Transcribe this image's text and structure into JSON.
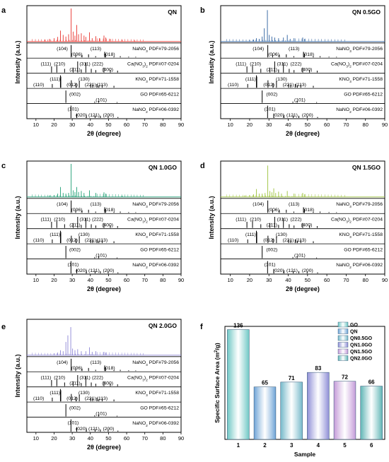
{
  "figure": {
    "panels": [
      {
        "letter": "a",
        "sample_label": "QN",
        "color": "#e8322c",
        "xlabel": "2θ (degree)",
        "ylabel": "Intensity (a.u.)",
        "xlim": [
          5,
          90
        ],
        "xticks": [
          10,
          20,
          30,
          40,
          50,
          60,
          70,
          80,
          90
        ],
        "sample_peaks": [
          [
            15,
            0.06
          ],
          [
            17.5,
            0.08
          ],
          [
            20,
            0.1
          ],
          [
            22,
            0.14
          ],
          [
            23.5,
            0.33
          ],
          [
            25,
            0.2
          ],
          [
            26.5,
            0.15
          ],
          [
            28,
            0.22
          ],
          [
            29.4,
            1.0
          ],
          [
            30.5,
            0.3
          ],
          [
            31.5,
            0.18
          ],
          [
            32.5,
            0.5
          ],
          [
            33.5,
            0.22
          ],
          [
            35,
            0.25
          ],
          [
            36.5,
            0.18
          ],
          [
            37.5,
            0.14
          ],
          [
            39.5,
            0.28
          ],
          [
            41,
            0.1
          ],
          [
            43,
            0.16
          ],
          [
            45,
            0.1
          ],
          [
            47.5,
            0.18
          ],
          [
            48.5,
            0.12
          ],
          [
            51,
            0.08
          ],
          [
            57.5,
            0.05
          ],
          [
            64.5,
            0.03
          ]
        ]
      },
      {
        "letter": "b",
        "sample_label": "QN 0.5GO",
        "color": "#2b5f9e",
        "xlabel": "2θ (degree)",
        "ylabel": "Intensity (a.u.)",
        "xlim": [
          5,
          90
        ],
        "xticks": [
          10,
          20,
          30,
          40,
          50,
          60,
          70,
          80,
          90
        ],
        "sample_peaks": [
          [
            20,
            0.05
          ],
          [
            22,
            0.06
          ],
          [
            23.5,
            0.1
          ],
          [
            25,
            0.08
          ],
          [
            26.5,
            0.15
          ],
          [
            27.6,
            0.4
          ],
          [
            29.2,
            0.95
          ],
          [
            30.2,
            0.2
          ],
          [
            31.5,
            0.15
          ],
          [
            33,
            0.12
          ],
          [
            35,
            0.1
          ],
          [
            37.5,
            0.12
          ],
          [
            39.5,
            0.2
          ],
          [
            41,
            0.08
          ],
          [
            43,
            0.1
          ],
          [
            47.5,
            0.12
          ],
          [
            48.5,
            0.08
          ]
        ]
      },
      {
        "letter": "c",
        "sample_label": "QN 1.0GO",
        "color": "#1e9e73",
        "xlabel": "2θ (degree)",
        "ylabel": "Intensity (a.u.)",
        "xlim": [
          5,
          90
        ],
        "xticks": [
          10,
          20,
          30,
          40,
          50,
          60,
          70,
          80,
          90
        ],
        "sample_peaks": [
          [
            17.5,
            0.05
          ],
          [
            20,
            0.06
          ],
          [
            22,
            0.1
          ],
          [
            23.5,
            0.3
          ],
          [
            25,
            0.12
          ],
          [
            26.5,
            0.1
          ],
          [
            28,
            0.12
          ],
          [
            29.4,
            1.0
          ],
          [
            30.5,
            0.2
          ],
          [
            31.5,
            0.15
          ],
          [
            32.5,
            0.3
          ],
          [
            33.5,
            0.15
          ],
          [
            35,
            0.18
          ],
          [
            36.5,
            0.12
          ],
          [
            39.5,
            0.2
          ],
          [
            43,
            0.12
          ],
          [
            47.5,
            0.14
          ],
          [
            48.5,
            0.1
          ],
          [
            57.5,
            0.04
          ]
        ]
      },
      {
        "letter": "d",
        "sample_label": "QN 1.5GO",
        "color": "#9cc23a",
        "xlabel": "2θ (degree)",
        "ylabel": "Intensity (a.u.)",
        "xlim": [
          5,
          90
        ],
        "xticks": [
          10,
          20,
          30,
          40,
          50,
          60,
          70,
          80,
          90
        ],
        "sample_peaks": [
          [
            17.5,
            0.05
          ],
          [
            20,
            0.06
          ],
          [
            22,
            0.08
          ],
          [
            23.5,
            0.24
          ],
          [
            25,
            0.1
          ],
          [
            26.5,
            0.1
          ],
          [
            28,
            0.12
          ],
          [
            29.4,
            0.95
          ],
          [
            30.5,
            0.18
          ],
          [
            31.5,
            0.14
          ],
          [
            32.5,
            0.26
          ],
          [
            33.5,
            0.12
          ],
          [
            35,
            0.16
          ],
          [
            36.5,
            0.1
          ],
          [
            39.5,
            0.18
          ],
          [
            43,
            0.1
          ],
          [
            47.5,
            0.12
          ],
          [
            48.5,
            0.08
          ]
        ]
      },
      {
        "letter": "e",
        "sample_label": "QN 2.0GO",
        "color": "#8d86d6",
        "xlabel": "2θ (degree)",
        "ylabel": "Intensity (a.u.)",
        "xlim": [
          5,
          90
        ],
        "xticks": [
          10,
          20,
          30,
          40,
          50,
          60,
          70,
          80,
          90
        ],
        "sample_peaks": [
          [
            20,
            0.06
          ],
          [
            22,
            0.08
          ],
          [
            23.5,
            0.15
          ],
          [
            25,
            0.12
          ],
          [
            26.5,
            0.4
          ],
          [
            27.6,
            0.6
          ],
          [
            29.2,
            0.85
          ],
          [
            30.2,
            0.2
          ],
          [
            31.5,
            0.15
          ],
          [
            33,
            0.18
          ],
          [
            35,
            0.12
          ],
          [
            37.5,
            0.12
          ],
          [
            39.5,
            0.24
          ],
          [
            41,
            0.1
          ],
          [
            43,
            0.12
          ],
          [
            47.5,
            0.1
          ],
          [
            48.5,
            0.08
          ]
        ]
      }
    ],
    "references": [
      {
        "name": "NaNO3 PDF#79-2056",
        "label_parts": [
          {
            "t": "NaNO"
          },
          {
            "t": "3",
            "sub": true
          },
          {
            "t": " PDF#79-2056"
          }
        ],
        "peaks": [
          [
            29.4,
            1.0
          ],
          [
            31.9,
            0.18
          ],
          [
            35.4,
            0.2
          ],
          [
            39,
            0.25
          ],
          [
            42.9,
            0.1
          ],
          [
            47.9,
            0.45
          ],
          [
            48.4,
            0.3
          ],
          [
            53,
            0.08
          ],
          [
            56.5,
            0.1
          ],
          [
            61.1,
            0.06
          ],
          [
            65,
            0.05
          ]
        ],
        "hkl": [
          {
            "x": 24.5,
            "t": "(104)"
          },
          {
            "x": 32.5,
            "t": "(006)",
            "low": true
          },
          {
            "x": 43,
            "t": "(113)"
          },
          {
            "x": 50.5,
            "t": "(018)",
            "low": true
          }
        ]
      },
      {
        "name": "Ca(NO3)2 PDF#07-0204",
        "label_parts": [
          {
            "t": "Ca(NO"
          },
          {
            "t": "3",
            "sub": true
          },
          {
            "t": ")"
          },
          {
            "t": "2",
            "sub": true
          },
          {
            "t": " PDF#07-0204"
          }
        ],
        "peaks": [
          [
            18.6,
            0.5
          ],
          [
            21.5,
            0.55
          ],
          [
            25.8,
            0.3
          ],
          [
            30.5,
            0.4
          ],
          [
            33,
            0.9
          ],
          [
            35,
            0.25
          ],
          [
            37.5,
            0.8
          ],
          [
            40.5,
            0.3
          ],
          [
            43,
            0.2
          ],
          [
            47.5,
            0.4
          ],
          [
            51,
            0.2
          ],
          [
            55,
            0.15
          ]
        ],
        "hkl": [
          {
            "x": 15.5,
            "t": "(111)"
          },
          {
            "x": 23,
            "t": "(210)"
          },
          {
            "x": 31.5,
            "t": "(211)",
            "low": true
          },
          {
            "x": 37,
            "t": "(311)"
          },
          {
            "x": 44,
            "t": "(222)"
          },
          {
            "x": 49.5,
            "t": "(400)",
            "low": true
          }
        ]
      },
      {
        "name": "KNO3 PDF#71-1558",
        "label_parts": [
          {
            "t": "KNO"
          },
          {
            "t": "3",
            "sub": true
          },
          {
            "t": " PDF#71-1558"
          }
        ],
        "peaks": [
          [
            19,
            0.3
          ],
          [
            23.5,
            1.0
          ],
          [
            23.7,
            0.9
          ],
          [
            29.5,
            0.6
          ],
          [
            32.1,
            0.35
          ],
          [
            33.9,
            0.55
          ],
          [
            40.2,
            0.3
          ],
          [
            41.3,
            0.25
          ],
          [
            43.6,
            0.3
          ],
          [
            44.7,
            0.2
          ],
          [
            46.5,
            0.25
          ],
          [
            53,
            0.15
          ]
        ],
        "hkl": [
          {
            "x": 11.5,
            "t": "(110)",
            "low": true
          },
          {
            "x": 20.5,
            "t": "(111)"
          },
          {
            "x": 30,
            "t": "(012)",
            "low": true
          },
          {
            "x": 36.5,
            "t": "(130)"
          },
          {
            "x": 40,
            "t": "(221)",
            "low": true
          },
          {
            "x": 46.5,
            "t": "(113)",
            "low": true
          }
        ]
      },
      {
        "name": "GO PDF#65-6212",
        "label_parts": [
          {
            "t": "GO PDF#65-6212"
          }
        ],
        "peaks": [
          [
            26.5,
            1.0
          ],
          [
            42.4,
            0.1
          ],
          [
            44.6,
            0.12
          ],
          [
            54.7,
            0.06
          ]
        ],
        "hkl": [
          {
            "x": 31.5,
            "t": "(002)"
          },
          {
            "x": 46,
            "t": "(101)",
            "low": true
          }
        ]
      },
      {
        "name": "NaNO2 PDF#06-0392",
        "label_parts": [
          {
            "t": "NaNO"
          },
          {
            "t": "2",
            "sub": true
          },
          {
            "t": " PDF#06-0392"
          }
        ],
        "peaks": [
          [
            29.3,
            1.0
          ],
          [
            32.5,
            0.35
          ],
          [
            37.8,
            0.25
          ],
          [
            42.6,
            0.2
          ],
          [
            45.5,
            0.18
          ],
          [
            49.8,
            0.15
          ],
          [
            55.2,
            0.08
          ]
        ],
        "hkl": [
          {
            "x": 30.5,
            "t": "(101)"
          },
          {
            "x": 35,
            "t": "(020)",
            "low": true
          },
          {
            "x": 42,
            "t": "(121)",
            "low": true
          },
          {
            "x": 50,
            "t": "(200)",
            "low": true
          }
        ]
      }
    ],
    "bar_panel": {
      "letter": "f",
      "type": "bar",
      "xlabel": "Sample",
      "ylabel_parts": [
        {
          "t": "Specific Surface Area (m"
        },
        {
          "t": "2",
          "sup": true
        },
        {
          "t": "/g)"
        }
      ],
      "ylim": [
        0,
        140
      ],
      "categories": [
        "1",
        "2",
        "3",
        "4",
        "5",
        "6"
      ],
      "values": [
        136,
        65,
        71,
        83,
        72,
        66
      ],
      "bar_colors": [
        "#6ec7c4",
        "#6da3d6",
        "#74b8c9",
        "#8e8ed6",
        "#c49ad8",
        "#5fb5b5"
      ],
      "legend": [
        "GO",
        "QN",
        "QN0.5GO",
        "QN1.0GO",
        "QN1.5GO",
        "QN2.0GO"
      ],
      "legend_placement": "top-right"
    }
  },
  "chart_data": [
    {
      "type": "line",
      "panel": "a",
      "sample": "QN",
      "xlabel": "2θ (degree)",
      "ylabel": "Intensity (a.u.)",
      "xlim": [
        5,
        90
      ]
    },
    {
      "type": "line",
      "panel": "b",
      "sample": "QN 0.5GO",
      "xlabel": "2θ (degree)",
      "ylabel": "Intensity (a.u.)",
      "xlim": [
        5,
        90
      ]
    },
    {
      "type": "line",
      "panel": "c",
      "sample": "QN 1.0GO",
      "xlabel": "2θ (degree)",
      "ylabel": "Intensity (a.u.)",
      "xlim": [
        5,
        90
      ]
    },
    {
      "type": "line",
      "panel": "d",
      "sample": "QN 1.5GO",
      "xlabel": "2θ (degree)",
      "ylabel": "Intensity (a.u.)",
      "xlim": [
        5,
        90
      ]
    },
    {
      "type": "line",
      "panel": "e",
      "sample": "QN 2.0GO",
      "xlabel": "2θ (degree)",
      "ylabel": "Intensity (a.u.)",
      "xlim": [
        5,
        90
      ]
    },
    {
      "type": "bar",
      "panel": "f",
      "categories": [
        "1",
        "2",
        "3",
        "4",
        "5",
        "6"
      ],
      "values": [
        136,
        65,
        71,
        83,
        72,
        66
      ],
      "xlabel": "Sample",
      "ylabel": "Specific Surface Area (m2/g)",
      "ylim": [
        0,
        140
      ]
    }
  ]
}
